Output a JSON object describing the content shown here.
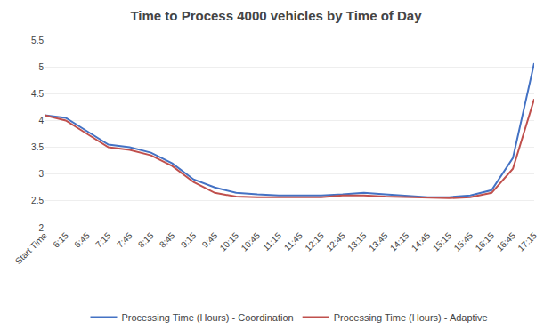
{
  "chart_data": {
    "type": "line",
    "title": "Time to Process 4000 vehicles by Time of Day",
    "categories": [
      "Start Time",
      "6:15",
      "6:45",
      "7:15",
      "7:45",
      "8:15",
      "8:45",
      "9:15",
      "9:45",
      "10:15",
      "10:45",
      "11:15",
      "11:45",
      "12:15",
      "12:45",
      "13:15",
      "13:45",
      "14:15",
      "14:45",
      "15:15",
      "15:45",
      "16:15",
      "16:45",
      "17:15"
    ],
    "series": [
      {
        "name": "Processing Time (Hours) - Coordination",
        "color": "#4472C4",
        "values": [
          4.1,
          4.05,
          3.8,
          3.55,
          3.5,
          3.4,
          3.2,
          2.9,
          2.75,
          2.65,
          2.62,
          2.6,
          2.6,
          2.6,
          2.62,
          2.65,
          2.62,
          2.6,
          2.57,
          2.57,
          2.6,
          2.7,
          3.3,
          5.07
        ]
      },
      {
        "name": "Processing Time (Hours) - Adaptive",
        "color": "#C0504D",
        "values": [
          4.1,
          4.0,
          3.75,
          3.5,
          3.45,
          3.35,
          3.15,
          2.85,
          2.65,
          2.58,
          2.57,
          2.57,
          2.57,
          2.57,
          2.6,
          2.6,
          2.58,
          2.57,
          2.55,
          2.55,
          2.57,
          2.65,
          3.1,
          4.4
        ]
      }
    ],
    "ylim": [
      2.0,
      5.5
    ],
    "yticks": [
      2.0,
      2.5,
      3.0,
      3.5,
      4.0,
      4.5,
      5.0,
      5.5
    ],
    "grid": true,
    "legend": "bottom"
  }
}
